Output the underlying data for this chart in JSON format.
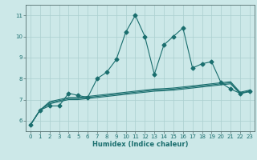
{
  "title": "",
  "xlabel": "Humidex (Indice chaleur)",
  "xlim": [
    -0.5,
    23.5
  ],
  "ylim": [
    5.5,
    11.5
  ],
  "yticks": [
    6,
    7,
    8,
    9,
    10,
    11
  ],
  "xticks": [
    0,
    1,
    2,
    3,
    4,
    5,
    6,
    7,
    8,
    9,
    10,
    11,
    12,
    13,
    14,
    15,
    16,
    17,
    18,
    19,
    20,
    21,
    22,
    23
  ],
  "bg_color": "#cce8e8",
  "line_color": "#1a6e6e",
  "grid_color": "#aacfcf",
  "line1_x": [
    0,
    1,
    2,
    3,
    4,
    5,
    6,
    7,
    8,
    9,
    10,
    11,
    12,
    13,
    14,
    15,
    16,
    17,
    18,
    19,
    20,
    21,
    22,
    23
  ],
  "line1_y": [
    5.8,
    6.5,
    6.7,
    6.7,
    7.3,
    7.2,
    7.1,
    8.0,
    8.3,
    8.9,
    10.2,
    11.0,
    10.0,
    8.2,
    9.6,
    10.0,
    10.4,
    8.5,
    8.7,
    8.8,
    7.8,
    7.5,
    7.3,
    7.4
  ],
  "line2_x": [
    0,
    1,
    2,
    3,
    4,
    5,
    6,
    7,
    8,
    9,
    10,
    11,
    12,
    13,
    14,
    15,
    16,
    17,
    18,
    19,
    20,
    21,
    22,
    23
  ],
  "line2_y": [
    5.8,
    6.5,
    6.9,
    7.0,
    7.1,
    7.1,
    7.15,
    7.2,
    7.25,
    7.3,
    7.35,
    7.4,
    7.45,
    7.5,
    7.52,
    7.55,
    7.6,
    7.65,
    7.7,
    7.75,
    7.8,
    7.85,
    7.35,
    7.45
  ],
  "line3_x": [
    0,
    1,
    2,
    3,
    4,
    5,
    6,
    7,
    8,
    9,
    10,
    11,
    12,
    13,
    14,
    15,
    16,
    17,
    18,
    19,
    20,
    21,
    22,
    23
  ],
  "line3_y": [
    5.8,
    6.5,
    6.85,
    6.95,
    7.05,
    7.05,
    7.1,
    7.15,
    7.2,
    7.25,
    7.3,
    7.35,
    7.4,
    7.45,
    7.47,
    7.5,
    7.55,
    7.6,
    7.65,
    7.7,
    7.75,
    7.8,
    7.3,
    7.4
  ],
  "line4_x": [
    0,
    1,
    2,
    3,
    4,
    5,
    6,
    7,
    8,
    9,
    10,
    11,
    12,
    13,
    14,
    15,
    16,
    17,
    18,
    19,
    20,
    21,
    22,
    23
  ],
  "line4_y": [
    5.8,
    6.5,
    6.8,
    6.9,
    7.0,
    7.0,
    7.05,
    7.1,
    7.15,
    7.2,
    7.25,
    7.3,
    7.35,
    7.4,
    7.42,
    7.45,
    7.5,
    7.55,
    7.6,
    7.65,
    7.7,
    7.75,
    7.28,
    7.38
  ],
  "xlabel_fontsize": 6.0,
  "tick_fontsize": 5.0,
  "linewidth": 0.8,
  "markersize": 2.5
}
